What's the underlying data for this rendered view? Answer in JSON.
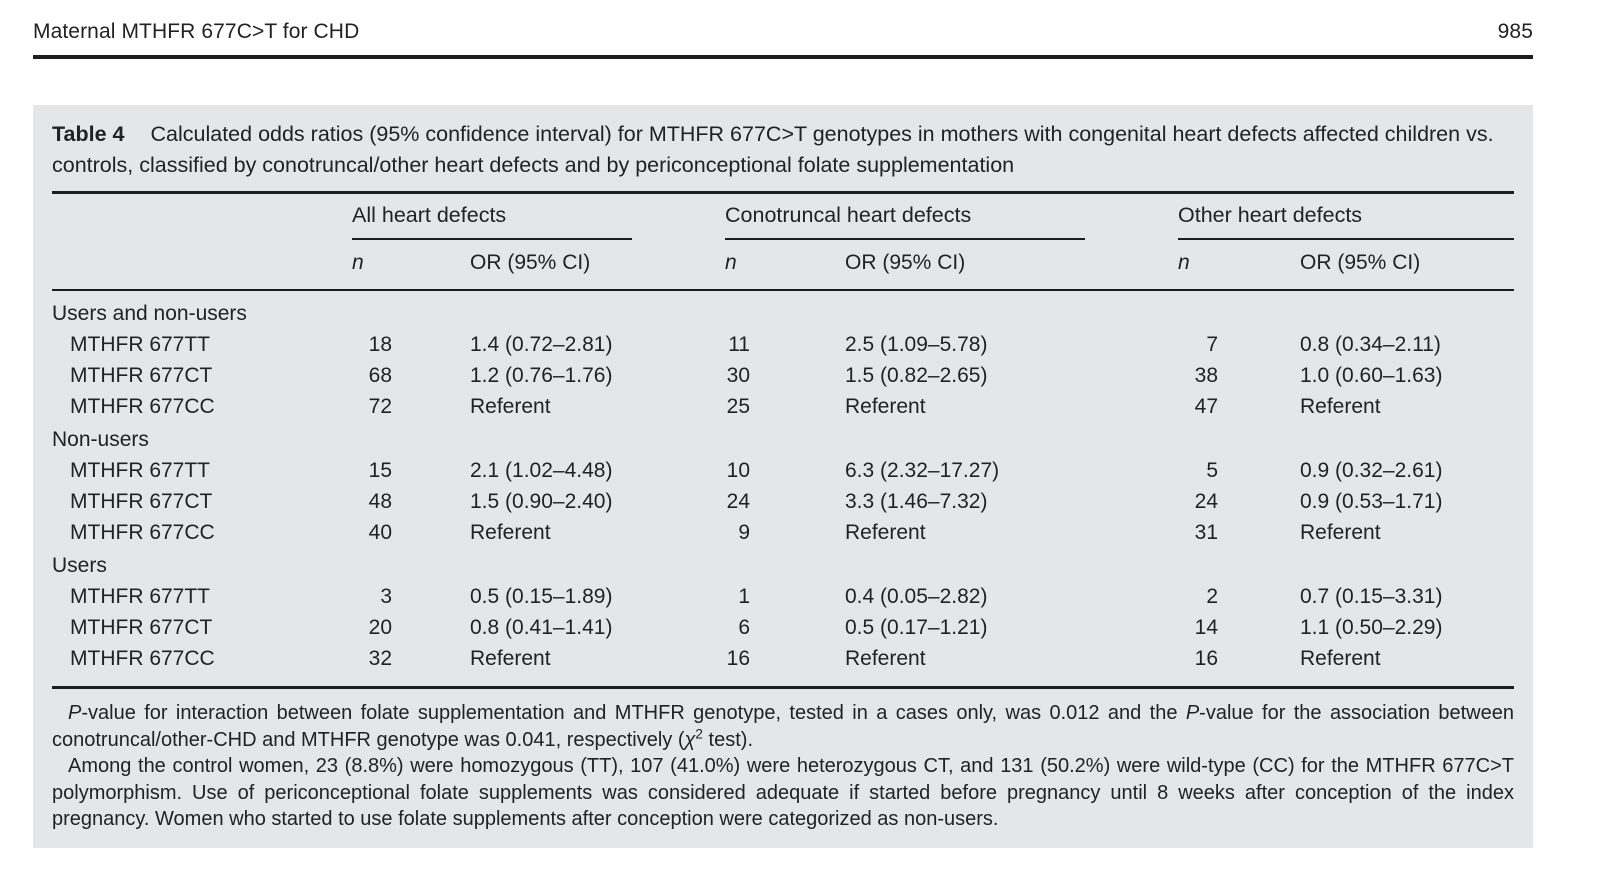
{
  "page": {
    "running_head": "Maternal MTHFR 677C>T for CHD",
    "page_number": "985"
  },
  "table": {
    "label": "Table 4",
    "caption": "Calculated odds ratios (95% confidence interval) for MTHFR 677C>T genotypes in mothers with congenital heart defects affected children vs. controls, classified by conotruncal/other heart defects and by periconceptional folate supplementation",
    "column_groups": [
      "All heart defects",
      "Conotruncal heart defects",
      "Other heart defects"
    ],
    "subheader_n": "n",
    "subheader_or": "OR (95% CI)",
    "groups": [
      {
        "label": "Users and non-users",
        "rows": [
          {
            "genotype": "MTHFR 677TT",
            "all_n": "18",
            "all_or": "1.4 (0.72–2.81)",
            "cono_n": "11",
            "cono_or": "2.5 (1.09–5.78)",
            "other_n": "7",
            "other_or": "0.8 (0.34–2.11)"
          },
          {
            "genotype": "MTHFR 677CT",
            "all_n": "68",
            "all_or": "1.2 (0.76–1.76)",
            "cono_n": "30",
            "cono_or": "1.5 (0.82–2.65)",
            "other_n": "38",
            "other_or": "1.0 (0.60–1.63)"
          },
          {
            "genotype": "MTHFR 677CC",
            "all_n": "72",
            "all_or": "Referent",
            "cono_n": "25",
            "cono_or": "Referent",
            "other_n": "47",
            "other_or": "Referent"
          }
        ]
      },
      {
        "label": "Non-users",
        "rows": [
          {
            "genotype": "MTHFR 677TT",
            "all_n": "15",
            "all_or": "2.1 (1.02–4.48)",
            "cono_n": "10",
            "cono_or": "6.3 (2.32–17.27)",
            "other_n": "5",
            "other_or": "0.9 (0.32–2.61)"
          },
          {
            "genotype": "MTHFR 677CT",
            "all_n": "48",
            "all_or": "1.5 (0.90–2.40)",
            "cono_n": "24",
            "cono_or": "3.3 (1.46–7.32)",
            "other_n": "24",
            "other_or": "0.9 (0.53–1.71)"
          },
          {
            "genotype": "MTHFR 677CC",
            "all_n": "40",
            "all_or": "Referent",
            "cono_n": "9",
            "cono_or": "Referent",
            "other_n": "31",
            "other_or": "Referent"
          }
        ]
      },
      {
        "label": "Users",
        "rows": [
          {
            "genotype": "MTHFR 677TT",
            "all_n": "3",
            "all_or": "0.5 (0.15–1.89)",
            "cono_n": "1",
            "cono_or": "0.4 (0.05–2.82)",
            "other_n": "2",
            "other_or": "0.7 (0.15–3.31)"
          },
          {
            "genotype": "MTHFR 677CT",
            "all_n": "20",
            "all_or": "0.8 (0.41–1.41)",
            "cono_n": "6",
            "cono_or": "0.5 (0.17–1.21)",
            "other_n": "14",
            "other_or": "1.1 (0.50–2.29)"
          },
          {
            "genotype": "MTHFR 677CC",
            "all_n": "32",
            "all_or": "Referent",
            "cono_n": "16",
            "cono_or": "Referent",
            "other_n": "16",
            "other_or": "Referent"
          }
        ]
      }
    ],
    "footnotes": [
      [
        {
          "t": "P",
          "s": "i"
        },
        {
          "t": "-value for interaction between folate supplementation and MTHFR genotype, tested in a cases only, was 0.012 and the "
        },
        {
          "t": "P",
          "s": "i"
        },
        {
          "t": "-value for the association between conotruncal/other-CHD and MTHFR genotype was 0.041, respectively ("
        },
        {
          "t": "χ",
          "s": "i"
        },
        {
          "t": "2",
          "s": "sup"
        },
        {
          "t": " test)."
        }
      ],
      [
        {
          "t": "Among the control women, 23 (8.8%) were homozygous (TT), 107 (41.0%) were heterozygous CT, and 131 (50.2%) were wild-type (CC) for the MTHFR 677C>T polymorphism. Use of periconceptional folate supplements was considered adequate if started before pregnancy until 8 weeks after conception of the index pregnancy. Women who started to use folate supplements after conception were categorized as non-users."
        }
      ]
    ]
  }
}
